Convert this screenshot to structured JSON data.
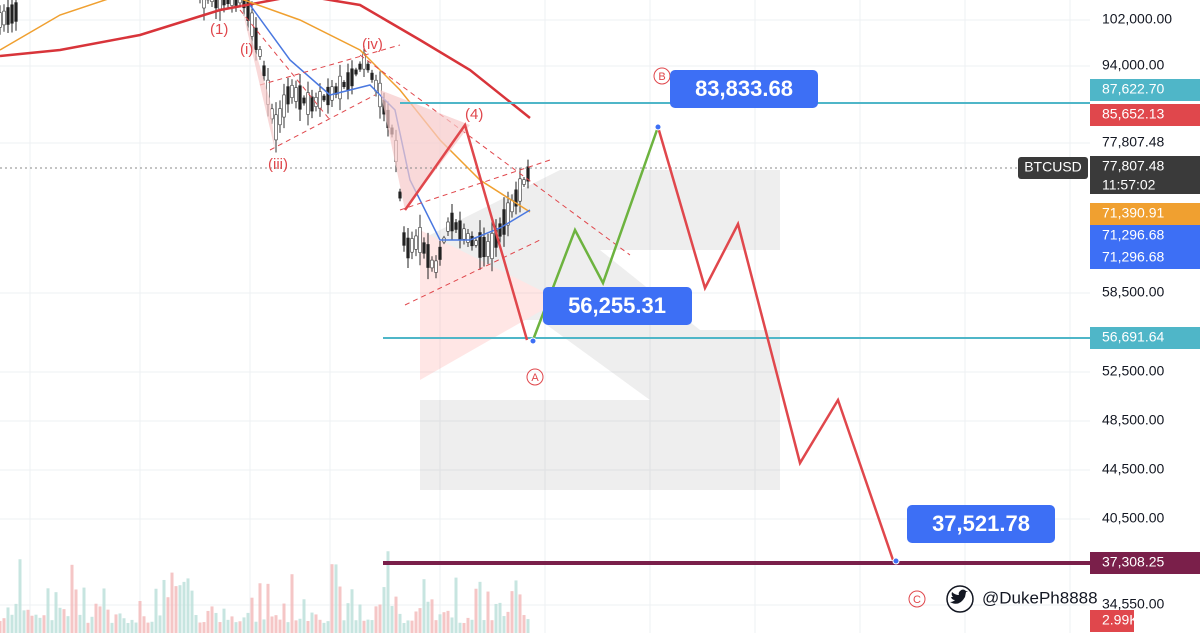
{
  "price_axis": {
    "labels": [
      "102,000.00",
      "94,000.00",
      "77,807.48",
      "58,500.00",
      "52,500.00",
      "48,500.00",
      "44,500.00",
      "40,500.00",
      "34,550.00"
    ]
  },
  "price_tags": [
    {
      "text": "87,622.70",
      "color": "#4fb6c8"
    },
    {
      "text": "85,652.13",
      "color": "#e0474c"
    },
    {
      "text": "77,807.48",
      "color": "#3a3a3a"
    },
    {
      "text": "11:57:02",
      "color": "#3a3a3a"
    },
    {
      "text": "71,390.91",
      "color": "#f0a030"
    },
    {
      "text": "71,296.68",
      "color": "#3d6ff5"
    },
    {
      "text": "71,296.68",
      "color": "#3d6ff5"
    },
    {
      "text": "56,691.64",
      "color": "#4fb6c8"
    },
    {
      "text": "37,308.25",
      "color": "#7a1f4a"
    },
    {
      "text": "2.99K",
      "color": "#e0474c"
    }
  ],
  "symbol": "BTCUSD",
  "callouts": [
    "83,833.68",
    "56,255.31",
    "37,521.78"
  ],
  "wave_labels": [
    "(1)",
    "(i)",
    "(iii)",
    "(iv)",
    "(4)",
    "B",
    "A",
    "C"
  ],
  "handle": "@DukePh8888"
}
